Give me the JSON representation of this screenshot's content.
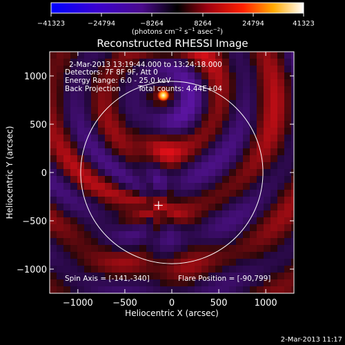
{
  "chart_data": {
    "type": "heatmap",
    "title": "Reconstructed RHESSI Image",
    "xlabel": "Heliocentric X (arcsec)",
    "ylabel": "Heliocentric Y (arcsec)",
    "xlim": [
      -1300,
      1300
    ],
    "ylim": [
      -1250,
      1250
    ],
    "x_ticks": [
      -1000,
      -500,
      0,
      500,
      1000
    ],
    "y_ticks": [
      1000,
      500,
      0,
      -500,
      -1000
    ],
    "x_tick_labels": [
      "−1000",
      "−500",
      "0",
      "500",
      "1000"
    ],
    "y_tick_labels": [
      "1000",
      "500",
      "0",
      "−500",
      "−1000"
    ],
    "colorbar": {
      "ticks": [
        "−41323",
        "−24794",
        "−8264",
        "8264",
        "24794",
        "41323"
      ],
      "unit_label": [
        "(photons cm",
        "−2",
        " s",
        "−1",
        " asec",
        "−2",
        ")"
      ],
      "range": [
        -41323,
        41323
      ]
    },
    "annotations": {
      "time_range": "2-Mar-2013 13:19:44.000 to 13:24:18.000",
      "detectors": "Detectors: 7F 8F 9F, Att 0",
      "energy": "Energy Range: 6.0 - 25.0 keV",
      "method": "Back Projection",
      "counts": "Total counts: 4.44E+04",
      "spin_axis": "Spin Axis = [-141,-340]",
      "flare_position": "Flare Position = [-90,799]"
    },
    "solar_limb_radius": 970,
    "spin_axis_xy": [
      -141,
      -340
    ],
    "flare_xy": [
      -90,
      799
    ]
  },
  "footer_timestamp": "2-Mar-2013 11:17"
}
